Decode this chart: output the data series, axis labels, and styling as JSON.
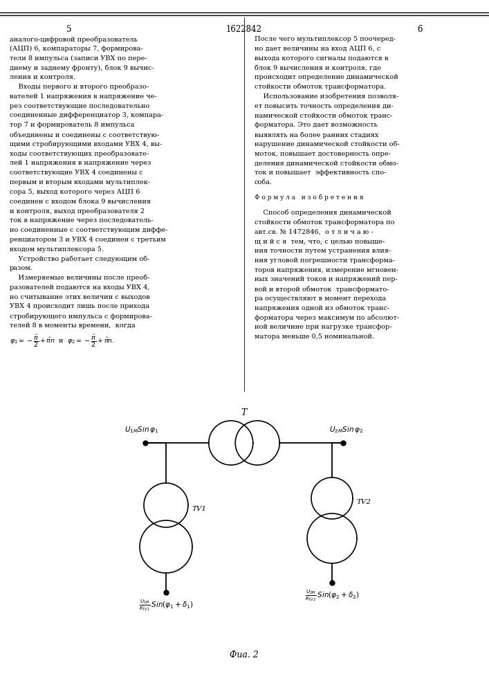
{
  "page_width": 7.07,
  "page_height": 10.0,
  "bg_color": "#ffffff",
  "title_number": "1622842",
  "col_left_number": "5",
  "col_right_number": "6",
  "left_text": [
    "аналого-цифровой преобразователь",
    "(АЦП) 6, компараторы 7, формирова-",
    "тели 8 импульса (записи УВХ по пере-",
    "днему и заднему фронту), блок 9 вычис-",
    "ления и контроля.",
    "    Входы первого и второго преобразо-",
    "вателей 1 напряжения в напряжение че-",
    "рез соответствующие последовательно",
    "соединенные дифференциатор 3, компара-",
    "тор 7 и формирователь 8 импульса",
    "объединены и соединены с соответствую-",
    "щими стробирующими входами УВХ 4, вы-",
    "ходы соответствующих преобразовате-",
    "лей 1 напряжения в напряжение через",
    "соответствующие УВХ 4 соединены с",
    "первым и вторым входами мультиплек-",
    "сора 5, выход которого через АЦП 6",
    "соединен с входом блока 9 вычисления",
    "и контроля, выход преобразователя 2",
    "ток в напряжение через последователь-",
    "но соединенные с соответствующим диффе-",
    "ренциатором 3 и УВХ 4 соединен с третьим",
    "входом мультиплексора 5.",
    "    Устройство работает следующим об-",
    "разом.",
    "    Измеряемые величины после преоб-",
    "разователей подаются на входы УВХ 4,",
    "но считывание этих величин с выходов",
    "УВХ 4 происходит лишь после прихода",
    "стробирующего импульса с формирова-",
    "телей 8 в моменты времени,  когда"
  ],
  "right_text": [
    "После чего мультиплексор 5 поочеред-",
    "но дает величины на вход АЦП 6, с",
    "выхода которого сигналы подаются в",
    "блок 9 вычисления и контроля, где",
    "происходит определение динамической",
    "стойкости обмоток трансформатора.",
    "    Использование изобретения позволя-",
    "ет повысить точность определения ди-",
    "намической стойкости обмоток транс-",
    "форматора. Это дает возможность",
    "выявлять на более ранних стадиях",
    "нарушение динамической стойкости об-",
    "моток, повышает достоверность опре-",
    "деления динамической стойкости обмо-",
    "ток и повышает  эффективность спо-",
    "соба."
  ],
  "formula_title": "Ф о р м у л а   и з о б р е т е н и я",
  "claim_text": [
    "    Способ определения динамической",
    "стойкости обмоток трансформатора по",
    "авт.св. № 1472846,  о т л и ч а ю -",
    "щ и й с я  тем, что, с целью повыше-",
    "ния точности путем устранения влия-",
    "ния угловой погрешности трансформа-",
    "торов напряжения, измерение мгновен-",
    "ных значений токов и напряжений пер-",
    "вой и второй обмоток  трансформато-",
    "ра осуществляют в момент перехода",
    "напряжения одной из обмоток транс-",
    "форматора через максимум по абсолют-",
    "ной величине при нагрузке трансфор-",
    "матора меньше 0,5 номинальной."
  ],
  "fig_label": "Фиа. 2"
}
